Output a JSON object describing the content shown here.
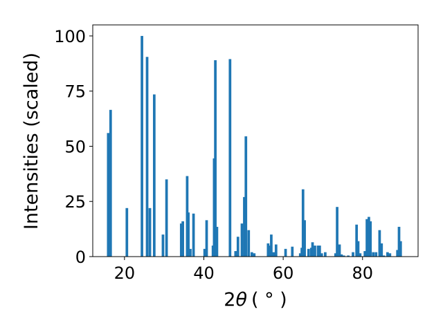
{
  "chart_data": {
    "type": "bar",
    "xlabel_main": "2",
    "xlabel_theta": "θ",
    "xlabel_unit": "( ° )",
    "ylabel": "Intensities (scaled)",
    "xlim": [
      12,
      94
    ],
    "ylim": [
      0,
      105
    ],
    "xticks": [
      20,
      40,
      60,
      80
    ],
    "yticks": [
      0,
      25,
      50,
      75,
      100
    ],
    "grid": false,
    "bar_color": "#1f77b4",
    "bar_width": 0.65,
    "x": [
      15.9,
      16.5,
      20.6,
      24.4,
      25.7,
      26.4,
      27.5,
      29.7,
      30.6,
      34.3,
      34.7,
      35.8,
      36.1,
      36.6,
      37.4,
      40.2,
      40.7,
      42.3,
      42.6,
      42.9,
      43.3,
      46.6,
      48.0,
      48.6,
      49.6,
      50.2,
      50.6,
      51.3,
      52.1,
      52.7,
      56.2,
      56.6,
      57.0,
      57.6,
      58.2,
      60.6,
      62.3,
      64.3,
      64.7,
      65.0,
      65.4,
      66.4,
      67.1,
      67.4,
      68.0,
      68.8,
      69.2,
      69.7,
      70.6,
      73.2,
      73.6,
      74.2,
      74.7,
      75.3,
      76.4,
      77.6,
      78.5,
      78.9,
      79.4,
      80.6,
      81.1,
      81.6,
      82.0,
      82.7,
      83.4,
      84.3,
      84.8,
      85.4,
      86.3,
      86.9,
      88.8,
      89.2,
      89.6
    ],
    "values": [
      56,
      66.5,
      22,
      100,
      90.5,
      22,
      73.5,
      10,
      35,
      15,
      16,
      36.5,
      20,
      3.5,
      19.5,
      3.5,
      16.5,
      5,
      44.5,
      89,
      13.5,
      89.5,
      2.5,
      9,
      15,
      27,
      54.5,
      12,
      2,
      1.5,
      6,
      5,
      10,
      2,
      5.5,
      3.5,
      4.5,
      1.5,
      4,
      30.5,
      16.5,
      3.5,
      4,
      6.5,
      5,
      5,
      5,
      1.5,
      2,
      1.5,
      22.5,
      5.5,
      1,
      0.5,
      0.5,
      2,
      14.5,
      7,
      1.5,
      2.5,
      17,
      18,
      16,
      2,
      2,
      12,
      6,
      0.5,
      2,
      1.5,
      3,
      13.5,
      7
    ]
  }
}
